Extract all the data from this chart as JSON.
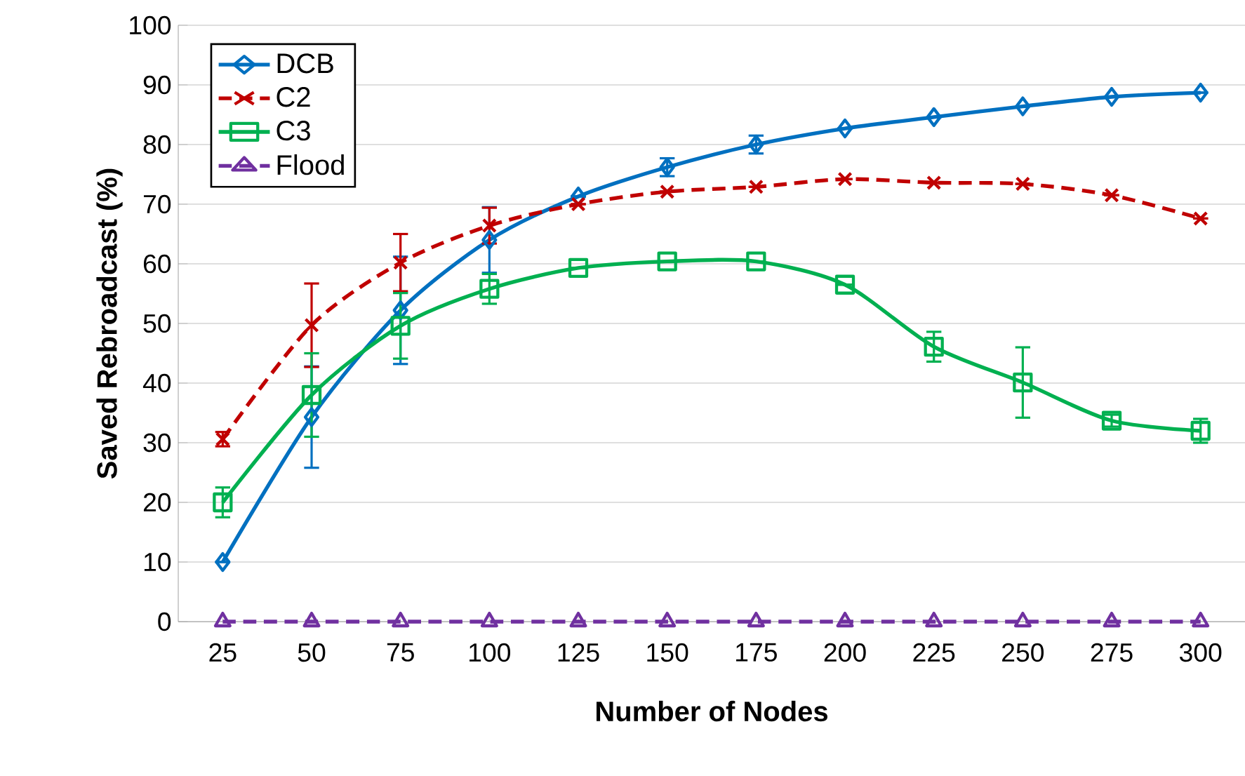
{
  "chart_data": {
    "type": "line",
    "xlabel": "Number of Nodes",
    "ylabel": "Saved Rebroadcast (%)",
    "categories": [
      "25",
      "50",
      "75",
      "100",
      "125",
      "150",
      "175",
      "200",
      "225",
      "250",
      "275",
      "300"
    ],
    "series": [
      {
        "name": "DCB",
        "color": "#0070c0",
        "marker": "diamond",
        "line_style": "solid",
        "values": [
          10,
          34.3,
          52.2,
          64,
          71.3,
          76.2,
          80,
          82.7,
          84.6,
          86.4,
          88,
          88.7
        ],
        "errors": [
          null,
          8.5,
          9,
          5.5,
          null,
          1.5,
          1.5,
          null,
          null,
          null,
          null,
          null
        ]
      },
      {
        "name": "C2",
        "color": "#c00000",
        "marker": "cross",
        "line_style": "dashed",
        "values": [
          30.6,
          49.7,
          60.2,
          66.4,
          70,
          72.1,
          72.9,
          74.2,
          73.6,
          73.4,
          71.5,
          67.6
        ],
        "errors": [
          1.2,
          7,
          4.8,
          3,
          null,
          null,
          null,
          null,
          null,
          null,
          null,
          null
        ]
      },
      {
        "name": "C3",
        "color": "#00b050",
        "marker": "square",
        "line_style": "solid",
        "values": [
          20,
          38,
          49.6,
          55.8,
          59.3,
          60.4,
          60.4,
          56.5,
          46.1,
          40.1,
          33.7,
          32
        ],
        "errors": [
          2.5,
          7,
          5.5,
          2.5,
          null,
          null,
          null,
          null,
          2.5,
          5.9,
          1,
          2
        ]
      },
      {
        "name": "Flood",
        "color": "#7030a0",
        "marker": "triangle",
        "line_style": "dashed",
        "values": [
          0,
          0,
          0,
          0,
          0,
          0,
          0,
          0,
          0,
          0,
          0,
          0
        ]
      }
    ],
    "ylim": [
      0,
      100
    ],
    "yticks": [
      0,
      10,
      20,
      30,
      40,
      50,
      60,
      70,
      80,
      90,
      100
    ],
    "grid": "y",
    "legend": "top left"
  }
}
